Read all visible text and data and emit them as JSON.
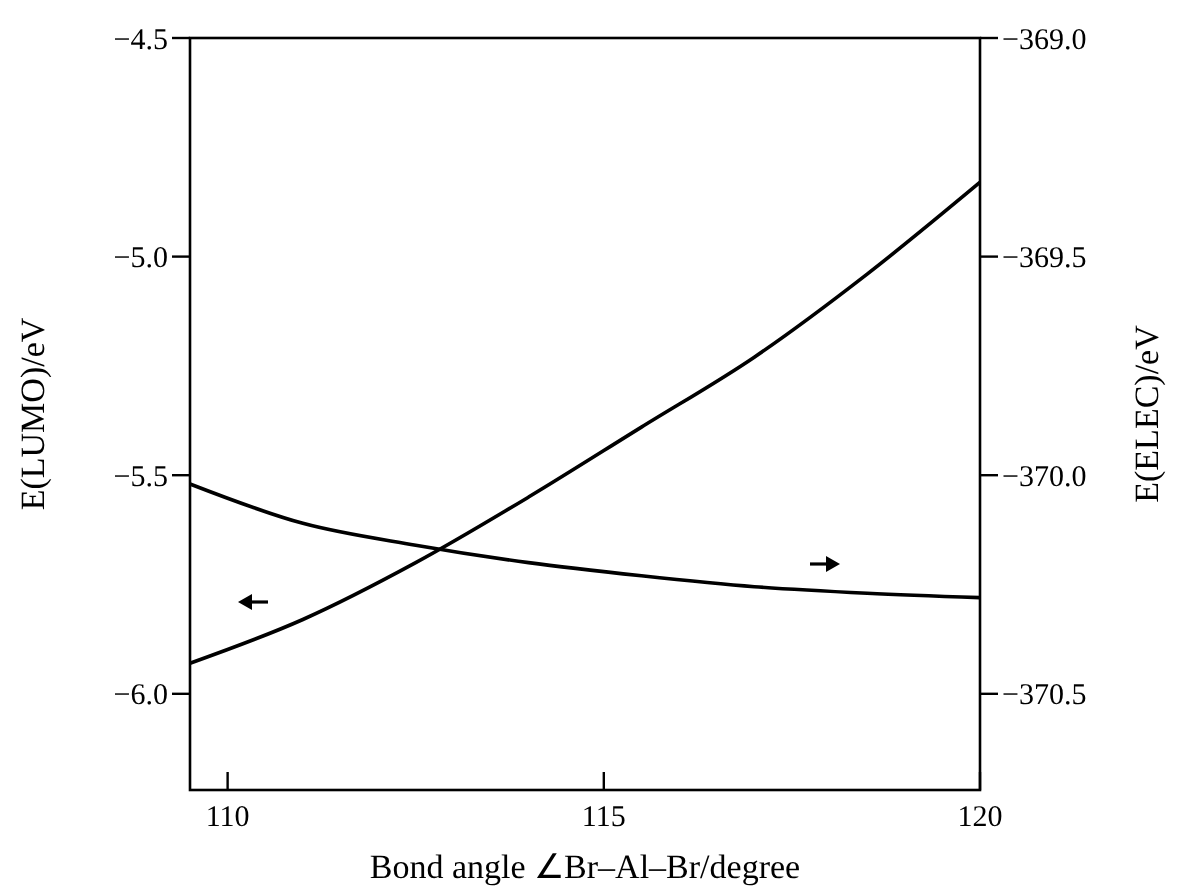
{
  "chart_data": {
    "type": "line",
    "xlabel": "Bond angle ∠Br–Al–Br/degree",
    "ylabel": "E(LUMO)/eV",
    "y2label": "E(ELEC)/eV",
    "xlim": [
      109.5,
      120
    ],
    "xticks": [
      110,
      115,
      120
    ],
    "ylim": [
      -6.22,
      -4.5
    ],
    "yticks": [
      {
        "value": -4.5,
        "label": "−4.5"
      },
      {
        "value": -5.0,
        "label": "−5.0"
      },
      {
        "value": -5.5,
        "label": "−5.5"
      },
      {
        "value": -6.0,
        "label": "−6.0"
      }
    ],
    "y2lim": [
      -370.72,
      -369.0
    ],
    "y2ticks": [
      {
        "value": -369.0,
        "label": "−369.0"
      },
      {
        "value": -369.5,
        "label": "−369.5"
      },
      {
        "value": -370.0,
        "label": "−370.0"
      },
      {
        "value": -370.5,
        "label": "−370.5"
      }
    ],
    "grid": false,
    "series": [
      {
        "color": "#000000",
        "x": [
          109.5,
          111,
          112.5,
          114,
          115.5,
          117,
          118.5,
          120
        ],
        "values": [
          -5.93,
          -5.83,
          -5.7,
          -5.55,
          -5.39,
          -5.23,
          -5.04,
          -4.83
        ]
      },
      {
        "color": "#000000",
        "axis": "y2",
        "x": [
          109.5,
          111,
          112.5,
          114,
          115.5,
          117,
          118.5,
          120
        ],
        "values": [
          -370.02,
          -370.11,
          -370.16,
          -370.2,
          -370.23,
          -370.255,
          -370.27,
          -370.28
        ]
      }
    ]
  }
}
